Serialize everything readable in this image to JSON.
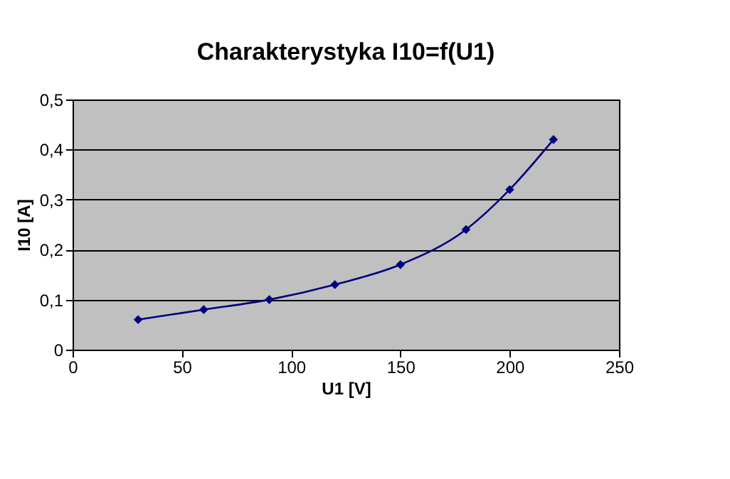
{
  "chart_data": {
    "type": "line",
    "title": "Charakterystyka I10=f(U1)",
    "xlabel": "U1 [V]",
    "ylabel": "I10 [A]",
    "x": [
      30,
      60,
      90,
      120,
      150,
      180,
      200,
      220
    ],
    "series": [
      {
        "color": "#000080",
        "values": [
          0.06,
          0.08,
          0.1,
          0.13,
          0.17,
          0.24,
          0.32,
          0.42
        ]
      }
    ],
    "xlim": [
      0,
      250
    ],
    "xticks": [
      0,
      50,
      100,
      150,
      200,
      250
    ],
    "ylim": [
      0,
      0.5
    ],
    "yticks": [
      0,
      {
        "value": 0.1,
        "label": "0,1"
      },
      {
        "value": 0.2,
        "label": "0,2"
      },
      {
        "value": 0.3,
        "label": "0,3"
      },
      {
        "value": 0.4,
        "label": "0,4"
      },
      {
        "value": 0.5,
        "label": "0,5"
      }
    ],
    "grid": "y",
    "marker": "diamond",
    "line_style": "solid"
  }
}
